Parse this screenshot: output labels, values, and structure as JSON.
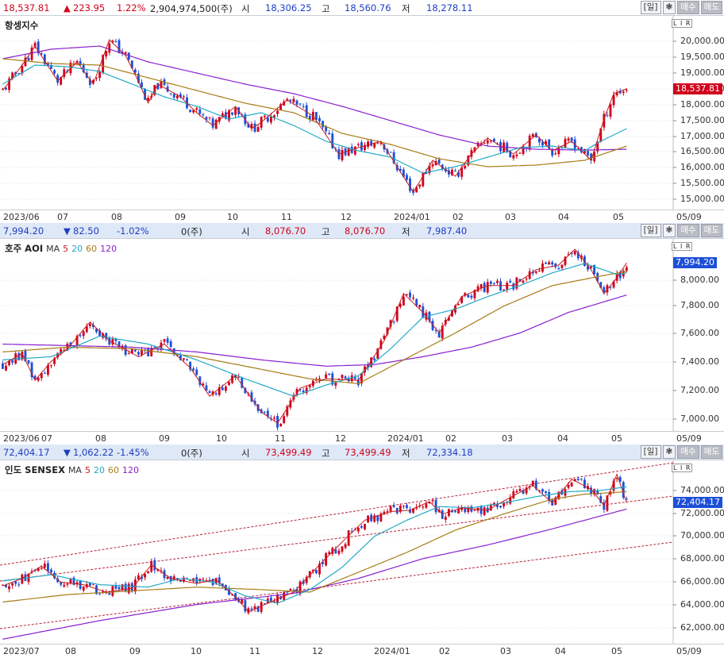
{
  "common": {
    "period_label": "[일]",
    "gear_icon": "❃",
    "buy_label": "매수",
    "sell_label": "매도",
    "scale_badge": "L I R",
    "colors": {
      "up": "#d0021b",
      "down": "#1d4fd8",
      "ma5": "#c81e1e",
      "ma20": "#21a9c7",
      "ma60": "#a87c17",
      "ma120": "#8a1fd0",
      "channel": "#b8243a"
    }
  },
  "panels": [
    {
      "id": "hsi",
      "header": {
        "price": "18,537.81",
        "arrow": "▲",
        "change": "223.95",
        "pct": "1.22%",
        "volume": "2,904,974,500(주)",
        "open_label": "시",
        "open": "18,306.25",
        "high_label": "고",
        "high": "18,560.76",
        "low_label": "저",
        "low": "18,278.11"
      },
      "title": "항셍지수",
      "ma_labels": [],
      "price_tag": "18,537.81",
      "y_ticks": [
        "20,000.00",
        "19,500.00",
        "19,000.00",
        "18,500.00",
        "18,000.00",
        "17,500.00",
        "17,000.00",
        "16,500.00",
        "16,000.00",
        "15,500.00",
        "15,000.00"
      ],
      "x_labels": [
        "2023/06",
        "07",
        "08",
        "09",
        "10",
        "11",
        "12",
        "2024/01",
        "02",
        "03",
        "04",
        "05",
        "05/09"
      ],
      "chart_data": {
        "type": "candlestick",
        "ylim": [
          14800,
          20800
        ],
        "path": [
          [
            0,
            18500
          ],
          [
            6,
            19300
          ],
          [
            10,
            19900
          ],
          [
            17,
            18800
          ],
          [
            23,
            19400
          ],
          [
            28,
            18700
          ],
          [
            33,
            20100
          ],
          [
            38,
            19600
          ],
          [
            41,
            19000
          ],
          [
            45,
            18100
          ],
          [
            48,
            18700
          ],
          [
            55,
            18300
          ],
          [
            60,
            17800
          ],
          [
            65,
            17400
          ],
          [
            72,
            18000
          ],
          [
            77,
            17300
          ],
          [
            80,
            17500
          ],
          [
            88,
            18200
          ],
          [
            96,
            17700
          ],
          [
            104,
            16500
          ],
          [
            110,
            16700
          ],
          [
            117,
            16900
          ],
          [
            122,
            16100
          ],
          [
            127,
            15300
          ],
          [
            133,
            16300
          ],
          [
            140,
            15800
          ],
          [
            145,
            16500
          ],
          [
            150,
            17000
          ],
          [
            158,
            16500
          ],
          [
            165,
            17100
          ],
          [
            170,
            16600
          ],
          [
            176,
            16900
          ],
          [
            182,
            16300
          ],
          [
            186,
            17600
          ],
          [
            189,
            18400
          ],
          [
            193,
            18550
          ]
        ],
        "n": 194,
        "ma20": [
          [
            0,
            18700
          ],
          [
            10,
            19300
          ],
          [
            20,
            19250
          ],
          [
            30,
            19100
          ],
          [
            40,
            18700
          ],
          [
            50,
            18300
          ],
          [
            60,
            18000
          ],
          [
            70,
            17600
          ],
          [
            80,
            17800
          ],
          [
            90,
            17400
          ],
          [
            100,
            16900
          ],
          [
            110,
            16600
          ],
          [
            120,
            16400
          ],
          [
            130,
            15900
          ],
          [
            140,
            16100
          ],
          [
            150,
            16400
          ],
          [
            160,
            16700
          ],
          [
            170,
            16750
          ],
          [
            180,
            16600
          ],
          [
            185,
            16900
          ],
          [
            193,
            17300
          ]
        ],
        "ma60": [
          [
            0,
            19500
          ],
          [
            15,
            19350
          ],
          [
            30,
            19300
          ],
          [
            45,
            18900
          ],
          [
            60,
            18500
          ],
          [
            75,
            18100
          ],
          [
            90,
            17800
          ],
          [
            105,
            17150
          ],
          [
            120,
            16800
          ],
          [
            135,
            16350
          ],
          [
            150,
            16100
          ],
          [
            165,
            16150
          ],
          [
            180,
            16300
          ],
          [
            193,
            16750
          ]
        ],
        "ma120": [
          [
            0,
            19500
          ],
          [
            15,
            19800
          ],
          [
            30,
            19900
          ],
          [
            45,
            19400
          ],
          [
            60,
            19050
          ],
          [
            75,
            18700
          ],
          [
            90,
            18400
          ],
          [
            105,
            18000
          ],
          [
            120,
            17550
          ],
          [
            135,
            17100
          ],
          [
            150,
            16750
          ],
          [
            165,
            16650
          ],
          [
            180,
            16620
          ],
          [
            193,
            16650
          ]
        ]
      }
    },
    {
      "id": "aord",
      "header": {
        "price": "7,994.20",
        "arrow": "▼",
        "change": "82.50",
        "pct": "-1.02%",
        "volume": "0(주)",
        "open_label": "시",
        "open": "8,076.70",
        "high_label": "고",
        "high": "8,076.70",
        "low_label": "저",
        "low": "7,987.40"
      },
      "title": "호주 AOI",
      "ma_labels": [
        {
          "t": "MA",
          "c": "#333"
        },
        {
          "t": "5",
          "c": "#c81e1e"
        },
        {
          "t": "20",
          "c": "#21a9c7"
        },
        {
          "t": "60",
          "c": "#a87c17"
        },
        {
          "t": "120",
          "c": "#8a1fd0"
        }
      ],
      "price_tag": "7,994.20",
      "y_ticks": [
        "8,000.00",
        "7,800.00",
        "7,600.00",
        "7,400.00",
        "7,200.00",
        "7,000.00"
      ],
      "x_labels": [
        "2023/06",
        "07",
        "08",
        "09",
        "10",
        "11",
        "12",
        "2024/01",
        "02",
        "03",
        "04",
        "05",
        "05/09"
      ],
      "chart_data": {
        "type": "candlestick",
        "ylim": [
          6930,
          8140
        ],
        "path": [
          [
            0,
            7350
          ],
          [
            6,
            7420
          ],
          [
            10,
            7250
          ],
          [
            15,
            7370
          ],
          [
            20,
            7450
          ],
          [
            27,
            7620
          ],
          [
            33,
            7500
          ],
          [
            42,
            7400
          ],
          [
            50,
            7480
          ],
          [
            58,
            7330
          ],
          [
            64,
            7150
          ],
          [
            72,
            7280
          ],
          [
            80,
            7050
          ],
          [
            85,
            6980
          ],
          [
            92,
            7200
          ],
          [
            100,
            7260
          ],
          [
            110,
            7250
          ],
          [
            118,
            7500
          ],
          [
            124,
            7800
          ],
          [
            130,
            7680
          ],
          [
            135,
            7550
          ],
          [
            142,
            7780
          ],
          [
            150,
            7850
          ],
          [
            158,
            7850
          ],
          [
            165,
            7950
          ],
          [
            172,
            7980
          ],
          [
            177,
            8080
          ],
          [
            182,
            7950
          ],
          [
            186,
            7800
          ],
          [
            190,
            7900
          ],
          [
            193,
            7994
          ]
        ],
        "n": 194,
        "ma20": [
          [
            0,
            7380
          ],
          [
            15,
            7400
          ],
          [
            30,
            7530
          ],
          [
            45,
            7480
          ],
          [
            60,
            7380
          ],
          [
            75,
            7260
          ],
          [
            90,
            7150
          ],
          [
            100,
            7220
          ],
          [
            110,
            7280
          ],
          [
            120,
            7450
          ],
          [
            130,
            7650
          ],
          [
            140,
            7700
          ],
          [
            150,
            7780
          ],
          [
            160,
            7850
          ],
          [
            170,
            7930
          ],
          [
            180,
            7990
          ],
          [
            190,
            7920
          ],
          [
            193,
            7930
          ]
        ],
        "ma60": [
          [
            0,
            7430
          ],
          [
            20,
            7460
          ],
          [
            40,
            7450
          ],
          [
            60,
            7400
          ],
          [
            80,
            7320
          ],
          [
            95,
            7260
          ],
          [
            110,
            7230
          ],
          [
            125,
            7390
          ],
          [
            140,
            7550
          ],
          [
            155,
            7720
          ],
          [
            170,
            7850
          ],
          [
            185,
            7910
          ],
          [
            193,
            7940
          ]
        ],
        "ma120": [
          [
            0,
            7480
          ],
          [
            20,
            7470
          ],
          [
            40,
            7460
          ],
          [
            60,
            7430
          ],
          [
            80,
            7380
          ],
          [
            100,
            7340
          ],
          [
            115,
            7350
          ],
          [
            130,
            7400
          ],
          [
            145,
            7460
          ],
          [
            160,
            7550
          ],
          [
            175,
            7680
          ],
          [
            193,
            7790
          ]
        ]
      }
    },
    {
      "id": "sensex",
      "header": {
        "price": "72,404.17",
        "arrow": "▼",
        "change": "1,062.22",
        "pct": "-1.45%",
        "volume": "0(주)",
        "open_label": "시",
        "open": "73,499.49",
        "high_label": "고",
        "high": "73,499.49",
        "low_label": "저",
        "low": "72,334.18"
      },
      "title": "인도 SENSEX",
      "ma_labels": [
        {
          "t": "MA",
          "c": "#333"
        },
        {
          "t": "5",
          "c": "#c81e1e"
        },
        {
          "t": "20",
          "c": "#21a9c7"
        },
        {
          "t": "60",
          "c": "#a87c17"
        },
        {
          "t": "120",
          "c": "#8a1fd0"
        }
      ],
      "price_tag": "72,404.17",
      "y_ticks": [
        "74,000.00",
        "72,000.00",
        "70,000.00",
        "68,000.00",
        "66,000.00",
        "64,000.00",
        "62,000.00"
      ],
      "x_labels": [
        "2023/07",
        "08",
        "09",
        "10",
        "11",
        "12",
        "2024/01",
        "02",
        "03",
        "04",
        "05",
        "05/09"
      ],
      "chart_data": {
        "type": "candlestick",
        "ylim": [
          61100,
          75700
        ],
        "path": [
          [
            0,
            65700
          ],
          [
            6,
            66300
          ],
          [
            12,
            67300
          ],
          [
            18,
            66000
          ],
          [
            25,
            65800
          ],
          [
            32,
            65200
          ],
          [
            40,
            65500
          ],
          [
            46,
            67400
          ],
          [
            52,
            66300
          ],
          [
            60,
            65900
          ],
          [
            66,
            66200
          ],
          [
            72,
            64800
          ],
          [
            76,
            63600
          ],
          [
            82,
            64300
          ],
          [
            90,
            65200
          ],
          [
            98,
            67400
          ],
          [
            106,
            69500
          ],
          [
            112,
            71000
          ],
          [
            120,
            71700
          ],
          [
            126,
            71800
          ],
          [
            132,
            72500
          ],
          [
            136,
            71500
          ],
          [
            142,
            72000
          ],
          [
            150,
            71800
          ],
          [
            156,
            72700
          ],
          [
            164,
            73800
          ],
          [
            170,
            72400
          ],
          [
            176,
            74300
          ],
          [
            182,
            73500
          ],
          [
            186,
            72200
          ],
          [
            190,
            74700
          ],
          [
            193,
            72404
          ]
        ],
        "n": 194,
        "ma20": [
          [
            0,
            66100
          ],
          [
            15,
            66600
          ],
          [
            30,
            65800
          ],
          [
            45,
            65600
          ],
          [
            55,
            66300
          ],
          [
            65,
            66000
          ],
          [
            75,
            64900
          ],
          [
            85,
            64300
          ],
          [
            95,
            65400
          ],
          [
            105,
            67200
          ],
          [
            115,
            69700
          ],
          [
            125,
            71000
          ],
          [
            135,
            72100
          ],
          [
            145,
            72000
          ],
          [
            155,
            72400
          ],
          [
            165,
            72900
          ],
          [
            175,
            73300
          ],
          [
            185,
            73400
          ],
          [
            193,
            73700
          ]
        ],
        "ma60": [
          [
            0,
            64400
          ],
          [
            20,
            65000
          ],
          [
            40,
            65300
          ],
          [
            60,
            65600
          ],
          [
            80,
            65400
          ],
          [
            95,
            65200
          ],
          [
            110,
            66800
          ],
          [
            125,
            68400
          ],
          [
            140,
            70200
          ],
          [
            155,
            71500
          ],
          [
            170,
            72700
          ],
          [
            180,
            73100
          ],
          [
            193,
            73300
          ]
        ],
        "ma120": [
          [
            0,
            61400
          ],
          [
            30,
            62900
          ],
          [
            60,
            64200
          ],
          [
            90,
            65100
          ],
          [
            110,
            66300
          ],
          [
            130,
            67900
          ],
          [
            150,
            69000
          ],
          [
            170,
            70300
          ],
          [
            193,
            71900
          ]
        ]
      }
    }
  ]
}
